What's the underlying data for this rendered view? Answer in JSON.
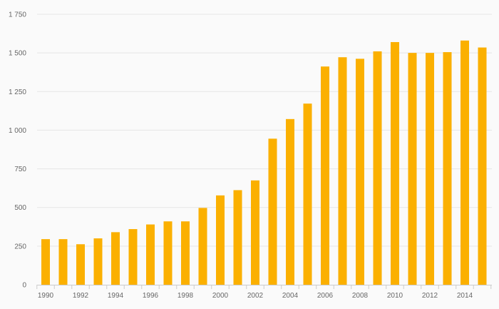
{
  "chart_data": {
    "type": "bar",
    "title": "",
    "xlabel": "",
    "ylabel": "",
    "categories": [
      "1990",
      "1991",
      "1992",
      "1993",
      "1994",
      "1995",
      "1996",
      "1997",
      "1998",
      "1999",
      "2000",
      "2001",
      "2002",
      "2003",
      "2004",
      "2005",
      "2006",
      "2007",
      "2008",
      "2009",
      "2010",
      "2011",
      "2012",
      "2013",
      "2014",
      "2015"
    ],
    "values": [
      295,
      295,
      262,
      300,
      340,
      360,
      390,
      410,
      410,
      497,
      578,
      612,
      675,
      945,
      1072,
      1172,
      1412,
      1472,
      1462,
      1510,
      1570,
      1500,
      1500,
      1505,
      1580,
      1535
    ],
    "ylim": [
      0,
      1750
    ],
    "yticks": [
      0,
      250,
      500,
      750,
      1000,
      1250,
      1500,
      1750
    ],
    "ytick_labels": [
      "0",
      "250",
      "500",
      "750",
      "1 000",
      "1 250",
      "1 500",
      "1 750"
    ],
    "xtick_labels": [
      "1990",
      "1992",
      "1994",
      "1996",
      "1998",
      "2000",
      "2002",
      "2004",
      "2006",
      "2008",
      "2010",
      "2012",
      "2014"
    ],
    "grid": true,
    "legend": "none",
    "bar_color": "#fbb000"
  }
}
